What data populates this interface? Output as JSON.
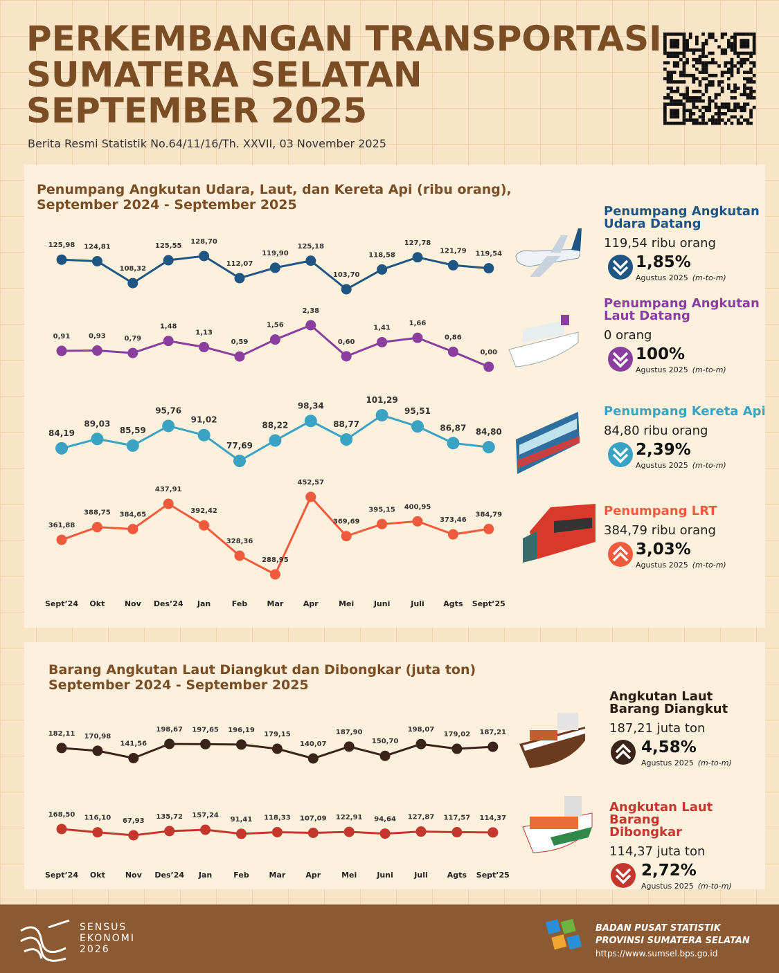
{
  "header": {
    "title": [
      "PERKEMBANGAN TRANSPORTASI",
      "SUMATERA SELATAN",
      "SEPTEMBER 2025"
    ],
    "subtitle": "Berita Resmi Statistik No.64/11/16/Th. XXVII, 03 November 2025"
  },
  "chart_data": [
    {
      "type": "line",
      "title": "Penumpang Angkutan Udara, Laut, dan Kereta Api (ribu orang),",
      "subtitle": "September 2024 - September 2025",
      "categories": [
        "Sept’24",
        "Okt",
        "Nov",
        "Des’24",
        "Jan",
        "Feb",
        "Mar",
        "Apr",
        "Mei",
        "Juni",
        "Juli",
        "Agts",
        "Sept’25"
      ],
      "series": [
        {
          "name": "Penumpang Angkutan Udara Datang",
          "color": "#1f5582",
          "values": [
            125.98,
            124.81,
            108.32,
            125.55,
            128.7,
            112.07,
            119.9,
            125.18,
            103.7,
            118.58,
            127.78,
            121.79,
            119.54
          ],
          "value_labels": [
            "125,98",
            "124,81",
            "108,32",
            "125,55",
            "128,70",
            "112,07",
            "119,90",
            "125,18",
            "103,70",
            "118,58",
            "127,78",
            "121,79",
            "119,54"
          ]
        },
        {
          "name": "Penumpang Angkutan Laut Datang",
          "color": "#8a3f9e",
          "values": [
            0.91,
            0.93,
            0.79,
            1.48,
            1.13,
            0.59,
            1.56,
            2.38,
            0.6,
            1.41,
            1.66,
            0.86,
            0.0
          ],
          "value_labels": [
            "0,91",
            "0,93",
            "0,79",
            "1,48",
            "1,13",
            "0,59",
            "1,56",
            "2,38",
            "0,60",
            "1,41",
            "1,66",
            "0,86",
            "0,00"
          ]
        },
        {
          "name": "Penumpang Kereta Api",
          "color": "#3aa3c4",
          "values": [
            84.19,
            89.03,
            85.59,
            95.76,
            91.02,
            77.69,
            88.22,
            98.34,
            88.77,
            101.29,
            95.51,
            86.87,
            84.8
          ],
          "value_labels": [
            "84,19",
            "89,03",
            "85,59",
            "95,76",
            "91,02",
            "77,69",
            "88,22",
            "98,34",
            "88,77",
            "101,29",
            "95,51",
            "86,87",
            "84,80"
          ]
        },
        {
          "name": "Penumpang LRT",
          "color": "#f05a3c",
          "values": [
            361.88,
            388.75,
            384.65,
            437.91,
            392.42,
            328.36,
            288.95,
            452.57,
            369.69,
            395.15,
            400.95,
            373.46,
            384.79
          ],
          "value_labels": [
            "361,88",
            "388,75",
            "384,65",
            "437,91",
            "392,42",
            "328,36",
            "288,95",
            "452,57",
            "369,69",
            "395,15",
            "400,95",
            "373,46",
            "384,79"
          ]
        }
      ]
    },
    {
      "type": "line",
      "title": "Barang Angkutan Laut Diangkut dan Dibongkar (juta ton)",
      "subtitle": "September 2024 - September 2025",
      "categories": [
        "Sept’24",
        "Okt",
        "Nov",
        "Des’24",
        "Jan",
        "Feb",
        "Mar",
        "Apr",
        "Mei",
        "Juni",
        "Juli",
        "Agts",
        "Sept’25"
      ],
      "series": [
        {
          "name": "Angkutan Laut Barang Diangkut",
          "color": "#3a2318",
          "values": [
            182.11,
            170.98,
            141.56,
            198.67,
            197.65,
            196.19,
            179.15,
            140.07,
            187.9,
            150.7,
            198.07,
            179.02,
            187.21
          ],
          "value_labels": [
            "182,11",
            "170,98",
            "141,56",
            "198,67",
            "197,65",
            "196,19",
            "179,15",
            "140,07",
            "187,90",
            "150,70",
            "198,07",
            "179,02",
            "187,21"
          ]
        },
        {
          "name": "Angkutan Laut Barang Dibongkar",
          "color": "#c4372d",
          "values": [
            168.5,
            116.1,
            67.93,
            135.72,
            157.24,
            91.41,
            118.33,
            107.09,
            122.91,
            94.64,
            127.87,
            117.57,
            114.37
          ],
          "value_labels": [
            "168,50",
            "116,10",
            "67,93",
            "135,72",
            "157,24",
            "91,41",
            "118,33",
            "107,09",
            "122,91",
            "94,64",
            "127,87",
            "117,57",
            "114,37"
          ]
        }
      ]
    }
  ],
  "panels": [
    [
      {
        "value": "119,54 ribu orang",
        "change": "1,85%",
        "direction": "down",
        "period": "Agustus 2025",
        "note": "(m-to-m)"
      },
      {
        "value": "0  orang",
        "change": "100%",
        "direction": "down",
        "period": "Agustus 2025",
        "note": "(m-to-m)"
      },
      {
        "value": "84,80 ribu orang",
        "change": "2,39%",
        "direction": "down",
        "period": "Agustus 2025",
        "note": "(m-to-m)"
      },
      {
        "value": "384,79 ribu orang",
        "change": "3,03%",
        "direction": "up",
        "period": "Agustus 2025",
        "note": "(m-to-m)"
      }
    ],
    [
      {
        "value": "187,21 juta ton",
        "change": "4,58%",
        "direction": "up",
        "period": "Agustus 2025",
        "note": "(m-to-m)"
      },
      {
        "value": "114,37 juta ton",
        "change": "2,72%",
        "direction": "down",
        "period": "Agustus 2025",
        "note": "(m-to-m)"
      }
    ]
  ],
  "footer": {
    "census": [
      "SENSUS",
      "EKONOMI",
      "2026"
    ],
    "agency": [
      "BADAN PUSAT STATISTIK",
      "PROVINSI SUMATERA SELATAN"
    ],
    "url": "https://www.sumsel.bps.go.id"
  }
}
